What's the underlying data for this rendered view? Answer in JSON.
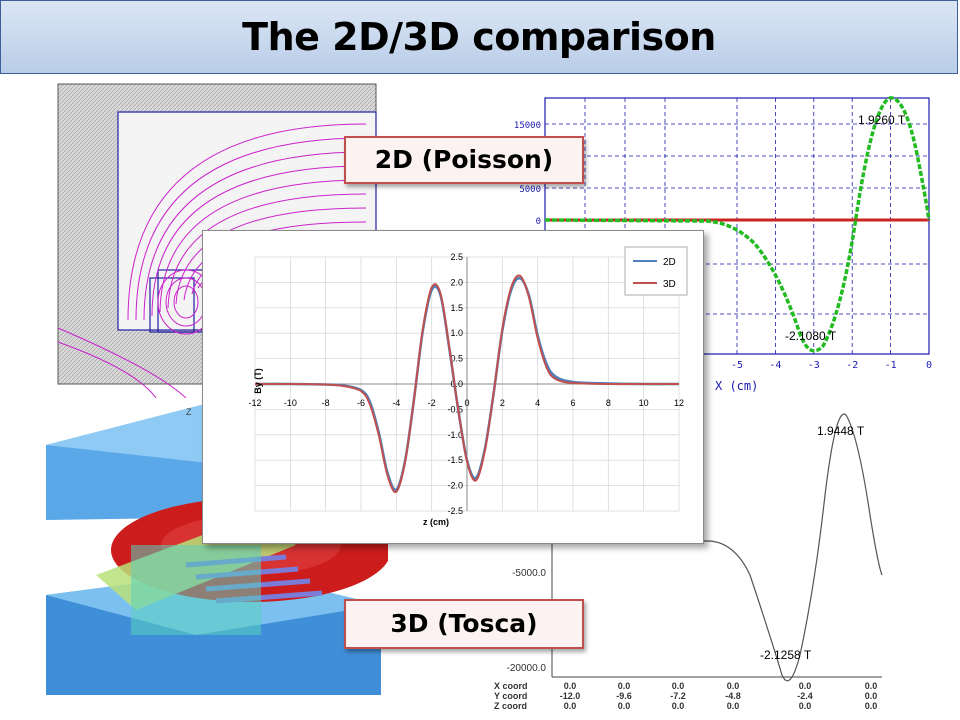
{
  "title": "The 2D/3D comparison",
  "callouts": {
    "poisson": "2D (Poisson)",
    "tosca": "3D (Tosca)"
  },
  "poisson_plot": {
    "y_ticks": [
      "15000",
      "10000",
      "5000",
      "0"
    ],
    "x_ticks": [
      "-5",
      "-4",
      "-3",
      "-2",
      "-1",
      "0"
    ],
    "xlabel": "X (cm)",
    "peak_label": "1.9260 T",
    "trough_label": "-2.1080 T",
    "colors": {
      "field": "#22bb22",
      "zero": "#cc2222",
      "grid": "#1a1ab0"
    }
  },
  "tosca_plot": {
    "y_ticks": [
      "-5000.0",
      "-20000.0"
    ],
    "peak_label": "1.9448 T",
    "trough_label": "-2.1258 T",
    "coord_rows": [
      {
        "label": "X coord",
        "values": [
          "0.0",
          "0.0",
          "0.0",
          "0.0",
          "0.0",
          "0.0"
        ]
      },
      {
        "label": "Y coord",
        "values": [
          "-12.0",
          "-9.6",
          "-7.2",
          "-4.8",
          "-2.4",
          "0.0"
        ]
      },
      {
        "label": "Z coord",
        "values": [
          "0.0",
          "0.0",
          "0.0",
          "0.0",
          "0.0",
          "0.0"
        ]
      }
    ]
  },
  "chart_data": {
    "type": "line",
    "title": "",
    "xlabel": "z (cm)",
    "ylabel": "By (T)",
    "xlim": [
      -12,
      12
    ],
    "ylim": [
      -2.5,
      2.5
    ],
    "x_ticks": [
      -12,
      -10,
      -8,
      -6,
      -4,
      -2,
      0,
      2,
      4,
      6,
      8,
      10,
      12
    ],
    "y_ticks": [
      "2.5",
      "2.0",
      "1.5",
      "1.0",
      "0.5",
      "0.0",
      "-0.5",
      "-1.0",
      "-1.5",
      "-2.0",
      "-2.5"
    ],
    "grid": true,
    "legend": "top-right",
    "x": [
      -12,
      -10,
      -8,
      -7,
      -6,
      -5.5,
      -5,
      -4.5,
      -4,
      -3.5,
      -3,
      -2.5,
      -2,
      -1.5,
      -1,
      -0.5,
      0,
      0.5,
      1,
      1.5,
      2,
      2.5,
      3,
      3.5,
      4,
      4.5,
      5,
      6,
      8,
      10,
      12
    ],
    "series": [
      {
        "name": "2D",
        "color": "#4f81bd",
        "values": [
          0,
          0,
          -0.01,
          -0.03,
          -0.12,
          -0.35,
          -0.95,
          -1.75,
          -2.08,
          -1.5,
          -0.3,
          1.05,
          1.85,
          1.75,
          0.7,
          -0.5,
          -1.5,
          -1.85,
          -1.3,
          -0.2,
          1.05,
          1.85,
          2.08,
          1.75,
          0.95,
          0.4,
          0.15,
          0.04,
          0.01,
          0,
          0
        ]
      },
      {
        "name": "3D",
        "color": "#c0504d",
        "values": [
          0,
          0,
          -0.01,
          -0.04,
          -0.14,
          -0.4,
          -1.0,
          -1.8,
          -2.12,
          -1.52,
          -0.3,
          1.08,
          1.9,
          1.78,
          0.72,
          -0.5,
          -1.52,
          -1.9,
          -1.33,
          -0.2,
          1.08,
          1.9,
          2.13,
          1.72,
          0.9,
          0.33,
          0.1,
          0.02,
          0,
          0,
          0
        ]
      }
    ]
  }
}
